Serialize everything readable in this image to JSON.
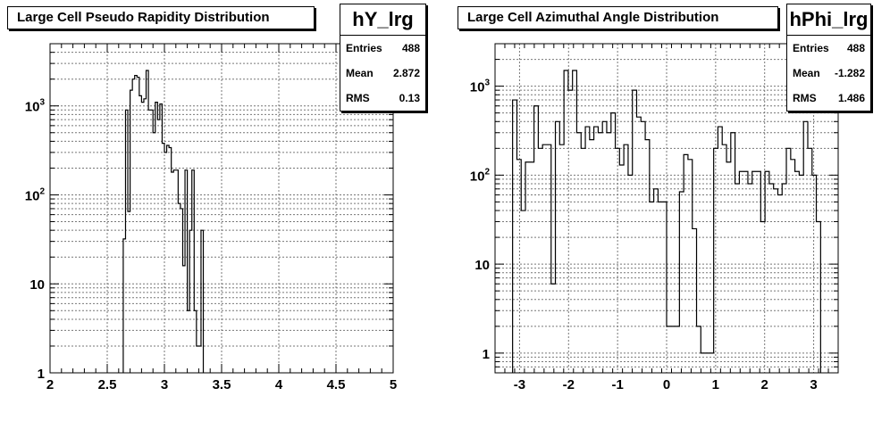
{
  "chart_data": [
    {
      "type": "histogram",
      "title": "Large Cell Pseudo Rapidity Distribution",
      "stats": {
        "name": "hY_lrg",
        "rows": [
          {
            "label": "Entries",
            "value": "488"
          },
          {
            "label": "Mean",
            "value": "2.872"
          },
          {
            "label": "RMS",
            "value": "0.13"
          }
        ]
      },
      "log_y": true,
      "grid": true,
      "xlim": [
        2,
        5
      ],
      "ylim": [
        1,
        5000
      ],
      "x_ticks": [
        "2",
        "2.5",
        "3",
        "3.5",
        "4",
        "4.5",
        "5"
      ],
      "y_ticks": [
        "1",
        "10",
        "10^2",
        "10^3"
      ],
      "bins": [
        {
          "x0": 2.64,
          "x1": 2.66,
          "y": 32
        },
        {
          "x0": 2.66,
          "x1": 2.68,
          "y": 900
        },
        {
          "x0": 2.68,
          "x1": 2.7,
          "y": 65
        },
        {
          "x0": 2.7,
          "x1": 2.72,
          "y": 1500
        },
        {
          "x0": 2.72,
          "x1": 2.74,
          "y": 2000
        },
        {
          "x0": 2.74,
          "x1": 2.76,
          "y": 2200
        },
        {
          "x0": 2.76,
          "x1": 2.78,
          "y": 2100
        },
        {
          "x0": 2.78,
          "x1": 2.8,
          "y": 1300
        },
        {
          "x0": 2.8,
          "x1": 2.82,
          "y": 1100
        },
        {
          "x0": 2.82,
          "x1": 2.84,
          "y": 1200
        },
        {
          "x0": 2.84,
          "x1": 2.86,
          "y": 2500
        },
        {
          "x0": 2.86,
          "x1": 2.88,
          "y": 900
        },
        {
          "x0": 2.88,
          "x1": 2.9,
          "y": 900
        },
        {
          "x0": 2.9,
          "x1": 2.92,
          "y": 500
        },
        {
          "x0": 2.92,
          "x1": 2.94,
          "y": 1100
        },
        {
          "x0": 2.94,
          "x1": 2.96,
          "y": 700
        },
        {
          "x0": 2.96,
          "x1": 2.98,
          "y": 1050
        },
        {
          "x0": 2.98,
          "x1": 3.0,
          "y": 380
        },
        {
          "x0": 3.0,
          "x1": 3.02,
          "y": 300
        },
        {
          "x0": 3.02,
          "x1": 3.04,
          "y": 360
        },
        {
          "x0": 3.04,
          "x1": 3.06,
          "y": 340
        },
        {
          "x0": 3.06,
          "x1": 3.08,
          "y": 180
        },
        {
          "x0": 3.08,
          "x1": 3.1,
          "y": 190
        },
        {
          "x0": 3.1,
          "x1": 3.12,
          "y": 190
        },
        {
          "x0": 3.12,
          "x1": 3.14,
          "y": 80
        },
        {
          "x0": 3.14,
          "x1": 3.16,
          "y": 70
        },
        {
          "x0": 3.16,
          "x1": 3.18,
          "y": 16
        },
        {
          "x0": 3.18,
          "x1": 3.2,
          "y": 190
        },
        {
          "x0": 3.2,
          "x1": 3.22,
          "y": 5
        },
        {
          "x0": 3.22,
          "x1": 3.24,
          "y": 40
        },
        {
          "x0": 3.24,
          "x1": 3.26,
          "y": 190
        },
        {
          "x0": 3.26,
          "x1": 3.28,
          "y": 5
        },
        {
          "x0": 3.28,
          "x1": 3.3,
          "y": 2
        },
        {
          "x0": 3.3,
          "x1": 3.32,
          "y": 2
        },
        {
          "x0": 3.32,
          "x1": 3.34,
          "y": 40
        }
      ]
    },
    {
      "type": "histogram",
      "title": "Large Cell Azimuthal Angle Distribution",
      "stats": {
        "name": "hPhi_lrg",
        "rows": [
          {
            "label": "Entries",
            "value": "488"
          },
          {
            "label": "Mean",
            "value": "-1.282"
          },
          {
            "label": "RMS",
            "value": "1.486"
          }
        ]
      },
      "log_y": true,
      "grid": true,
      "xlim": [
        -3.5,
        3.5
      ],
      "ylim": [
        0.6,
        3000
      ],
      "x_ticks": [
        "-3",
        "-2",
        "-1",
        "0",
        "1",
        "2",
        "3"
      ],
      "y_ticks": [
        "1",
        "10",
        "10^2",
        "10^3"
      ],
      "bins": [
        {
          "x0": -3.142,
          "x1": -3.054,
          "y": 700
        },
        {
          "x0": -3.054,
          "x1": -2.967,
          "y": 150
        },
        {
          "x0": -2.967,
          "x1": -2.88,
          "y": 40
        },
        {
          "x0": -2.88,
          "x1": -2.793,
          "y": 140
        },
        {
          "x0": -2.793,
          "x1": -2.705,
          "y": 140
        },
        {
          "x0": -2.705,
          "x1": -2.618,
          "y": 600
        },
        {
          "x0": -2.618,
          "x1": -2.531,
          "y": 200
        },
        {
          "x0": -2.531,
          "x1": -2.443,
          "y": 220
        },
        {
          "x0": -2.443,
          "x1": -2.356,
          "y": 220
        },
        {
          "x0": -2.356,
          "x1": -2.269,
          "y": 6
        },
        {
          "x0": -2.269,
          "x1": -2.182,
          "y": 400
        },
        {
          "x0": -2.182,
          "x1": -2.094,
          "y": 220
        },
        {
          "x0": -2.094,
          "x1": -2.007,
          "y": 1500
        },
        {
          "x0": -2.007,
          "x1": -1.92,
          "y": 900
        },
        {
          "x0": -1.92,
          "x1": -1.833,
          "y": 1500
        },
        {
          "x0": -1.833,
          "x1": -1.745,
          "y": 300
        },
        {
          "x0": -1.745,
          "x1": -1.658,
          "y": 200
        },
        {
          "x0": -1.658,
          "x1": -1.571,
          "y": 350
        },
        {
          "x0": -1.571,
          "x1": -1.484,
          "y": 250
        },
        {
          "x0": -1.484,
          "x1": -1.396,
          "y": 350
        },
        {
          "x0": -1.396,
          "x1": -1.309,
          "y": 300
        },
        {
          "x0": -1.309,
          "x1": -1.222,
          "y": 400
        },
        {
          "x0": -1.222,
          "x1": -1.134,
          "y": 300
        },
        {
          "x0": -1.134,
          "x1": -1.047,
          "y": 500
        },
        {
          "x0": -1.047,
          "x1": -0.96,
          "y": 200
        },
        {
          "x0": -0.96,
          "x1": -0.873,
          "y": 130
        },
        {
          "x0": -0.873,
          "x1": -0.785,
          "y": 220
        },
        {
          "x0": -0.785,
          "x1": -0.698,
          "y": 100
        },
        {
          "x0": -0.698,
          "x1": -0.611,
          "y": 900
        },
        {
          "x0": -0.611,
          "x1": -0.524,
          "y": 450
        },
        {
          "x0": -0.524,
          "x1": -0.436,
          "y": 400
        },
        {
          "x0": -0.436,
          "x1": -0.349,
          "y": 250
        },
        {
          "x0": -0.349,
          "x1": -0.262,
          "y": 50
        },
        {
          "x0": -0.262,
          "x1": -0.175,
          "y": 70
        },
        {
          "x0": -0.175,
          "x1": -0.087,
          "y": 50
        },
        {
          "x0": -0.087,
          "x1": 0.0,
          "y": 50
        },
        {
          "x0": 0.0,
          "x1": 0.087,
          "y": 2
        },
        {
          "x0": 0.087,
          "x1": 0.175,
          "y": 2
        },
        {
          "x0": 0.175,
          "x1": 0.262,
          "y": 2
        },
        {
          "x0": 0.262,
          "x1": 0.349,
          "y": 65
        },
        {
          "x0": 0.349,
          "x1": 0.436,
          "y": 170
        },
        {
          "x0": 0.436,
          "x1": 0.524,
          "y": 150
        },
        {
          "x0": 0.524,
          "x1": 0.611,
          "y": 25
        },
        {
          "x0": 0.611,
          "x1": 0.698,
          "y": 2
        },
        {
          "x0": 0.698,
          "x1": 0.785,
          "y": 1
        },
        {
          "x0": 0.785,
          "x1": 0.873,
          "y": 1
        },
        {
          "x0": 0.873,
          "x1": 0.96,
          "y": 1
        },
        {
          "x0": 0.96,
          "x1": 1.047,
          "y": 200
        },
        {
          "x0": 1.047,
          "x1": 1.134,
          "y": 350
        },
        {
          "x0": 1.134,
          "x1": 1.222,
          "y": 220
        },
        {
          "x0": 1.222,
          "x1": 1.309,
          "y": 140
        },
        {
          "x0": 1.309,
          "x1": 1.396,
          "y": 300
        },
        {
          "x0": 1.396,
          "x1": 1.484,
          "y": 80
        },
        {
          "x0": 1.484,
          "x1": 1.571,
          "y": 110
        },
        {
          "x0": 1.571,
          "x1": 1.658,
          "y": 110
        },
        {
          "x0": 1.658,
          "x1": 1.745,
          "y": 80
        },
        {
          "x0": 1.745,
          "x1": 1.833,
          "y": 110
        },
        {
          "x0": 1.833,
          "x1": 1.92,
          "y": 110
        },
        {
          "x0": 1.92,
          "x1": 2.007,
          "y": 30
        },
        {
          "x0": 2.007,
          "x1": 2.094,
          "y": 110
        },
        {
          "x0": 2.094,
          "x1": 2.182,
          "y": 80
        },
        {
          "x0": 2.182,
          "x1": 2.269,
          "y": 70
        },
        {
          "x0": 2.269,
          "x1": 2.356,
          "y": 60
        },
        {
          "x0": 2.356,
          "x1": 2.443,
          "y": 80
        },
        {
          "x0": 2.443,
          "x1": 2.531,
          "y": 200
        },
        {
          "x0": 2.531,
          "x1": 2.618,
          "y": 150
        },
        {
          "x0": 2.618,
          "x1": 2.705,
          "y": 110
        },
        {
          "x0": 2.705,
          "x1": 2.793,
          "y": 100
        },
        {
          "x0": 2.793,
          "x1": 2.88,
          "y": 400
        },
        {
          "x0": 2.88,
          "x1": 2.967,
          "y": 200
        },
        {
          "x0": 2.967,
          "x1": 3.054,
          "y": 100
        },
        {
          "x0": 3.054,
          "x1": 3.142,
          "y": 30
        }
      ]
    }
  ]
}
